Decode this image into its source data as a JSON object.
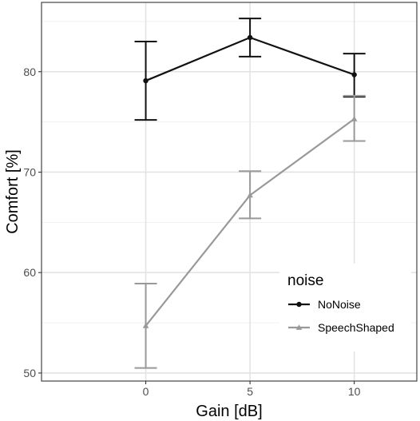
{
  "chart_data": {
    "type": "line",
    "xlabel": "Gain [dB]",
    "ylabel": "Comfort [%]",
    "x": [
      0,
      5,
      10
    ],
    "x_tick_labels": [
      "0",
      "5",
      "10"
    ],
    "xlim": [
      -5,
      13
    ],
    "y_ticks": [
      50,
      60,
      70,
      80
    ],
    "y_tick_labels": [
      "50",
      "60",
      "70",
      "80"
    ],
    "ylim": [
      49.2,
      86.9
    ],
    "grid": true,
    "legend": {
      "title": "noise",
      "position": "bottom-right inside"
    },
    "series": [
      {
        "name": "NoNoise",
        "color": "#111111",
        "marker": "circle",
        "values": [
          79.1,
          83.4,
          79.7
        ],
        "error_low": [
          75.2,
          81.5,
          77.5
        ],
        "error_high": [
          83.0,
          85.3,
          81.8
        ]
      },
      {
        "name": "SpeechShaped",
        "color": "#999999",
        "marker": "triangle",
        "values": [
          54.7,
          67.7,
          75.3
        ],
        "error_low": [
          50.5,
          65.4,
          73.1
        ],
        "error_high": [
          58.9,
          70.1,
          77.6
        ]
      }
    ]
  }
}
